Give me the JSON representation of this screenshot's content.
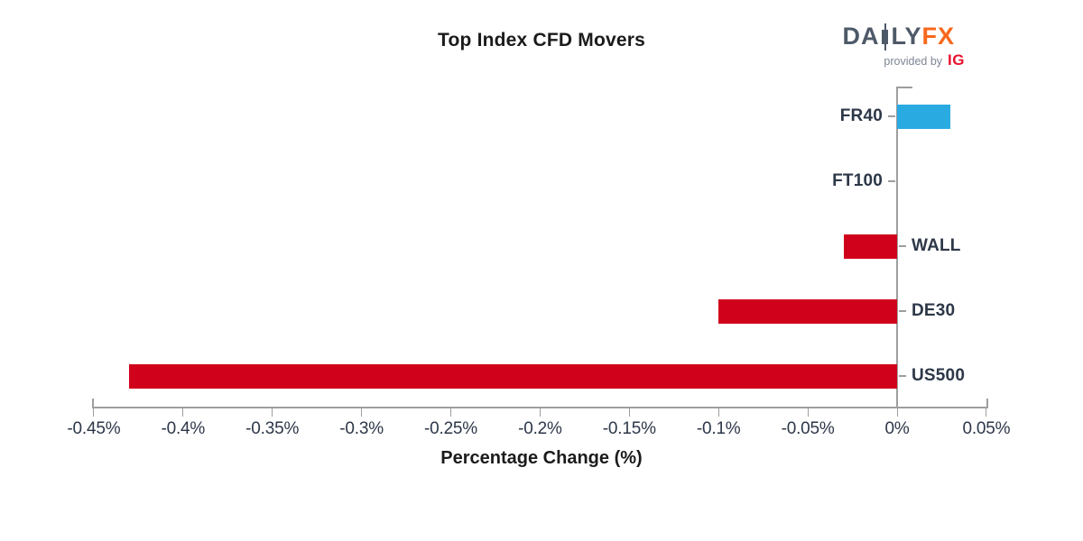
{
  "logo": {
    "brand_part1": "DA",
    "brand_part2": "LY",
    "brand_accent": "FX",
    "provided_by": "provided by",
    "provider": "IG"
  },
  "colors": {
    "positive_bar": "#29ABE2",
    "negative_bar": "#D0021B",
    "axis_line": "#9E9E9E",
    "tick_text": "#2D3748",
    "title_text": "#1B1B1B",
    "logo_slate": "#4E5968",
    "logo_orange": "#F8681C",
    "provided_by_gray": "#7D8694",
    "ig_red": "#E8112D"
  },
  "chart_data": {
    "type": "bar",
    "orientation": "horizontal",
    "title": "Top Index CFD Movers",
    "xlabel": "Percentage Change (%)",
    "categories": [
      "FR40",
      "FT100",
      "WALL",
      "DE30",
      "US500"
    ],
    "values": [
      0.03,
      0.0,
      -0.03,
      -0.1,
      -0.43
    ],
    "unit": "%",
    "xlim": [
      -0.45,
      0.05
    ],
    "xticks": [
      -0.45,
      -0.4,
      -0.35,
      -0.3,
      -0.25,
      -0.2,
      -0.15,
      -0.1,
      -0.05,
      0,
      0.05
    ],
    "xtick_labels": [
      "-0.45%",
      "-0.4%",
      "-0.35%",
      "-0.3%",
      "-0.25%",
      "-0.2%",
      "-0.15%",
      "-0.1%",
      "-0.05%",
      "0%",
      "0.05%"
    ],
    "grid": false,
    "legend": "none",
    "bar_color_positive": "#29ABE2",
    "bar_color_negative": "#D0021B"
  }
}
